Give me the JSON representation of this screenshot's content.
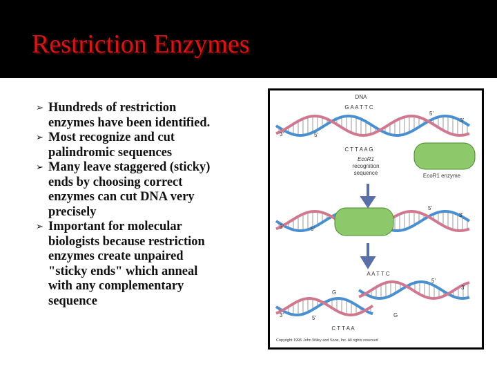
{
  "slide": {
    "title": "Restriction Enzymes",
    "bullets": [
      [
        "Hundreds of restriction",
        "enzymes have been identified."
      ],
      [
        "Most recognize and cut",
        "palindromic sequences"
      ],
      [
        "Many leave staggered (sticky)",
        "ends by choosing correct",
        "enzymes can cut DNA very",
        "precisely"
      ],
      [
        "Important for molecular",
        "biologists because restriction",
        "enzymes create unpaired",
        "\"sticky ends\" which anneal",
        "with any complementary",
        "sequence"
      ]
    ],
    "figure": {
      "dna_label": "DNA",
      "top_sequence": "G A A T T C",
      "bottom_sequence": "C T T A A G",
      "strand_ends_1": [
        "5'",
        "3'",
        "3'",
        "5'"
      ],
      "recognition_label": [
        "EcoR1",
        "recognition",
        "sequence"
      ],
      "enzyme_label": "EcoR1 enzyme",
      "strand_ends_2": [
        "5'",
        "3'",
        "3'",
        "5'"
      ],
      "right_fragment_sequence": "A A T T C",
      "right_fragment_base": "G",
      "right_fragment_ends": [
        "5'",
        "3'"
      ],
      "left_fragment_base": "G",
      "left_fragment_sequence": "C T T A A",
      "left_fragment_ends": [
        "3'",
        "5'"
      ],
      "copyright": "Copyright 1996 John Wiley and Sons, Inc. All rights reserved"
    }
  }
}
